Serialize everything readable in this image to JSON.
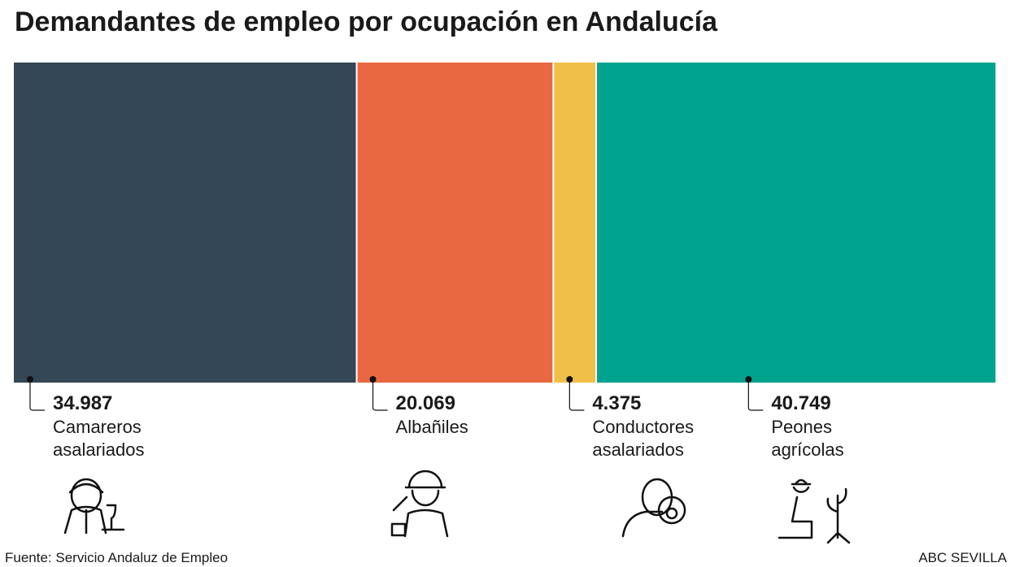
{
  "chart_data": {
    "type": "proportional-bar",
    "title": "Demandantes de empleo por ocupación en Andalucía",
    "categories": [
      "Camareros asalariados",
      "Albañiles",
      "Conductores asalariados",
      "Peones agrícolas"
    ],
    "values": [
      34987,
      20069,
      4375,
      40749
    ],
    "value_labels": [
      "34.987",
      "20.069",
      "4.375",
      "40.749"
    ],
    "colors": [
      "#334756",
      "#e96841",
      "#f0bf48",
      "#00a38e"
    ],
    "source": "Fuente: Servicio Andaluz de Empleo",
    "credit": "ABC SEVILLA"
  }
}
